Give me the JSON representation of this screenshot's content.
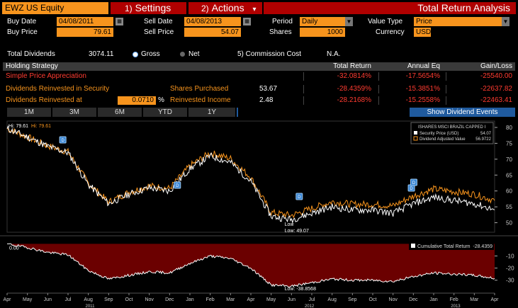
{
  "header": {
    "ticker": "EWZ US Equity",
    "settings_num": "1)",
    "settings_label": "Settings",
    "actions_num": "2)",
    "actions_label": "Actions",
    "actions_arrow": "▾",
    "title": "Total Return Analysis"
  },
  "form": {
    "buy_date_label": "Buy Date",
    "buy_date": "04/08/2011",
    "sell_date_label": "Sell Date",
    "sell_date": "04/08/2013",
    "period_label": "Period",
    "period": "Daily",
    "value_type_label": "Value Type",
    "value_type": "Price",
    "buy_price_label": "Buy Price",
    "buy_price": "79.61",
    "sell_price_label": "Sell Price",
    "sell_price": "54.07",
    "shares_label": "Shares",
    "shares": "1000",
    "currency_label": "Currency",
    "currency": "USD",
    "total_dividends_label": "Total Dividends",
    "total_dividends": "3074.11",
    "gross_label": "Gross",
    "net_label": "Net",
    "commission_label": "5) Commission Cost",
    "commission_value": "N.A."
  },
  "table": {
    "headers": [
      "Holding Strategy",
      "Total Return",
      "Annual Eq",
      "Gain/Loss"
    ],
    "rows": [
      {
        "label": "Simple Price Appreciation",
        "total_return": "-32.0814%",
        "annual_eq": "-17.5654%",
        "gain_loss": "-25540.00"
      },
      {
        "label": "Dividends Reinvested in Security",
        "extra_label": "Shares Purchased",
        "extra_value": "53.67",
        "total_return": "-28.4359%",
        "annual_eq": "-15.3851%",
        "gain_loss": "-22637.82"
      },
      {
        "label": "Dividends Reinvested at",
        "rate": "0.0710",
        "rate_unit": "%",
        "extra_label": "Reinvested Income",
        "extra_value": "2.48",
        "total_return": "-28.2168%",
        "annual_eq": "-15.2558%",
        "gain_loss": "-22463.41"
      }
    ]
  },
  "tabs": [
    "1M",
    "3M",
    "6M",
    "YTD",
    "1Y"
  ],
  "show_dividend_events": "Show Dividend Events",
  "icons": {
    "calendar": "calendar-icon",
    "dropdown": "chevron-down-icon",
    "dividend": "dividend-marker-icon"
  },
  "colors": {
    "accent": "#f7941d",
    "red_button": "#b00000",
    "loss_red": "#ff3b30",
    "blue_button": "#1f5a9e",
    "area_red": "#6b0000"
  },
  "chart_data": [
    {
      "type": "line",
      "legend_title": "ISHARES MSCI BRAZIL CAPPED I",
      "hi_white_label": "Hi: 79.61",
      "hi_orange_label": "Hi: 79.61",
      "low_label": "Low: 49.07",
      "low_label_orange": "Low",
      "ylim": [
        47,
        82
      ],
      "y_ticks": [
        80,
        75,
        70,
        65,
        60,
        55,
        50
      ],
      "legend_position": "top-right",
      "dividend_marker": "D",
      "dividend_events_x": [
        0.115,
        0.35,
        0.6,
        0.83,
        0.835
      ],
      "x": [
        "Apr 2011",
        "May 2011",
        "Jun 2011",
        "Jul 2011",
        "Aug 2011",
        "Sep 2011",
        "Oct 2011",
        "Nov 2011",
        "Dec 2011",
        "Jan 2012",
        "Feb 2012",
        "Mar 2012",
        "Apr 2012",
        "May 2012",
        "Jun 2012",
        "Jul 2012",
        "Aug 2012",
        "Sep 2012",
        "Oct 2012",
        "Nov 2012",
        "Dec 2012",
        "Jan 2013",
        "Feb 2013",
        "Mar 2013",
        "Apr 2013"
      ],
      "series": [
        {
          "name": "Security Price (USD)",
          "last": "54.07",
          "color": "#ffffff",
          "values": [
            79.6,
            77,
            74,
            72,
            62,
            56,
            59,
            61,
            60,
            67,
            71,
            69,
            63,
            52,
            51,
            53,
            55,
            54,
            54,
            53,
            56,
            58,
            57,
            56,
            54.07
          ]
        },
        {
          "name": "Dividend Adjusted Value",
          "last": "56.9722",
          "color": "#f7941d",
          "values": [
            79.6,
            77,
            74.2,
            72.3,
            62.5,
            56.5,
            59.6,
            61.6,
            60.8,
            67.9,
            72,
            70.2,
            64.2,
            53.2,
            52.3,
            54.5,
            56.6,
            55.8,
            55.8,
            55.3,
            58.4,
            60.6,
            59.8,
            59,
            56.97
          ]
        }
      ]
    },
    {
      "type": "area",
      "legend_label": "Cumulative Total Return",
      "legend_value": "-28.4359",
      "start_label": "0.00",
      "low_label": "Low: -38.8568",
      "ylim": [
        -36,
        2
      ],
      "y_ticks": [
        -10,
        -20,
        -30
      ],
      "legend_position": "top-right",
      "x_month_labels": [
        "Apr",
        "May",
        "Jun",
        "Jul",
        "Aug",
        "Sep",
        "Oct",
        "Nov",
        "Dec",
        "Jan",
        "Feb",
        "Mar",
        "Apr",
        "May",
        "Jun",
        "Jul",
        "Aug",
        "Sep",
        "Oct",
        "Nov",
        "Dec",
        "Jan",
        "Feb",
        "Mar",
        "Apr"
      ],
      "x_year_labels": [
        "2011",
        "2012",
        "2013"
      ],
      "series": [
        {
          "name": "Cumulative Total Return",
          "color": "#ffffff",
          "values": [
            0,
            -3,
            -7,
            -9,
            -22,
            -29,
            -26,
            -23,
            -24,
            -16,
            -10,
            -12,
            -20,
            -34,
            -35,
            -32,
            -29,
            -30,
            -30,
            -31,
            -27,
            -24,
            -25,
            -26,
            -28.44
          ]
        }
      ]
    }
  ]
}
